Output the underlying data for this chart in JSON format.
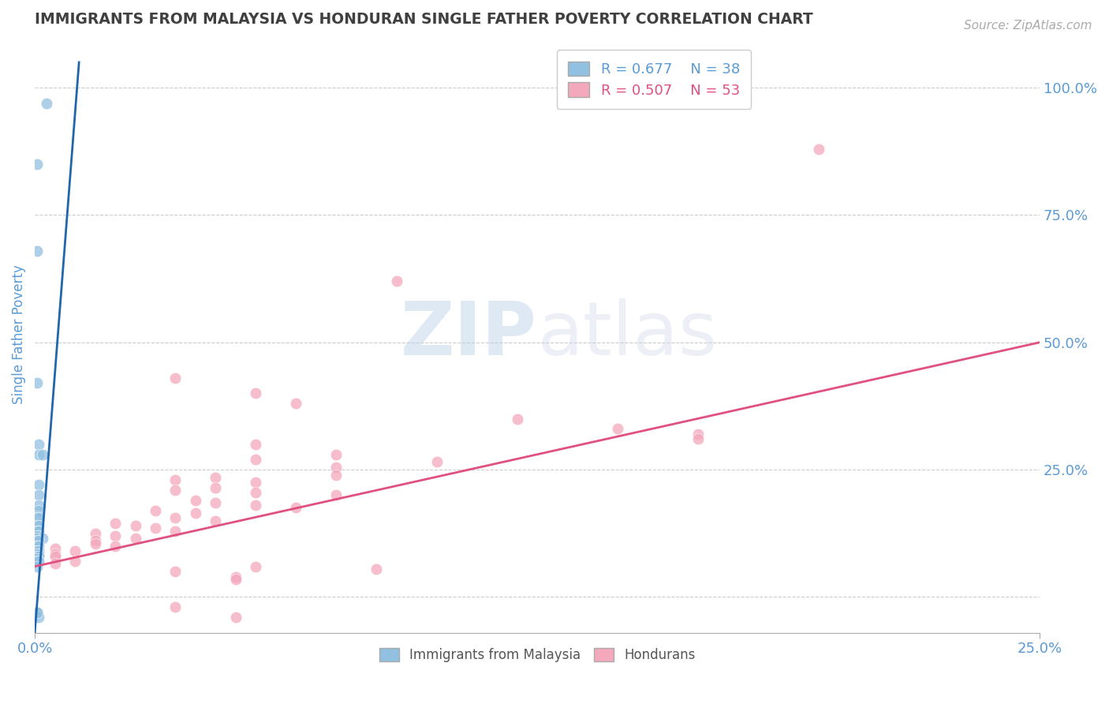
{
  "title": "IMMIGRANTS FROM MALAYSIA VS HONDURAN SINGLE FATHER POVERTY CORRELATION CHART",
  "source": "Source: ZipAtlas.com",
  "ylabel": "Single Father Poverty",
  "legend_blue": {
    "R": 0.677,
    "N": 38,
    "label": "Immigrants from Malaysia"
  },
  "legend_pink": {
    "R": 0.507,
    "N": 53,
    "label": "Hondurans"
  },
  "background_color": "#ffffff",
  "watermark": "ZIPatlas",
  "blue_color": "#92c0e0",
  "pink_color": "#f4a8bc",
  "blue_line_color": "#2166ac",
  "pink_line_color": "#e05080",
  "axis_label_color": "#5b9bd5",
  "title_color": "#404040",
  "blue_scatter": [
    [
      0.0005,
      0.85
    ],
    [
      0.003,
      0.97
    ],
    [
      0.0005,
      0.68
    ],
    [
      0.0005,
      0.42
    ],
    [
      0.001,
      0.3
    ],
    [
      0.001,
      0.28
    ],
    [
      0.002,
      0.28
    ],
    [
      0.001,
      0.22
    ],
    [
      0.001,
      0.2
    ],
    [
      0.001,
      0.18
    ],
    [
      0.001,
      0.17
    ],
    [
      0.0005,
      0.155
    ],
    [
      0.001,
      0.155
    ],
    [
      0.0005,
      0.14
    ],
    [
      0.001,
      0.14
    ],
    [
      0.0005,
      0.13
    ],
    [
      0.001,
      0.13
    ],
    [
      0.001,
      0.12
    ],
    [
      0.0005,
      0.12
    ],
    [
      0.0005,
      0.115
    ],
    [
      0.002,
      0.115
    ],
    [
      0.0005,
      0.11
    ],
    [
      0.001,
      0.11
    ],
    [
      0.0005,
      0.1
    ],
    [
      0.001,
      0.1
    ],
    [
      0.0005,
      0.09
    ],
    [
      0.001,
      0.09
    ],
    [
      0.001,
      0.085
    ],
    [
      0.0005,
      0.085
    ],
    [
      0.0005,
      0.08
    ],
    [
      0.001,
      0.08
    ],
    [
      0.0005,
      0.075
    ],
    [
      0.0005,
      0.07
    ],
    [
      0.001,
      0.07
    ],
    [
      0.0005,
      0.06
    ],
    [
      0.0005,
      -0.03
    ],
    [
      0.001,
      -0.04
    ],
    [
      0.0005,
      -0.03
    ]
  ],
  "pink_scatter": [
    [
      0.195,
      0.88
    ],
    [
      0.09,
      0.62
    ],
    [
      0.035,
      0.43
    ],
    [
      0.055,
      0.4
    ],
    [
      0.065,
      0.38
    ],
    [
      0.12,
      0.35
    ],
    [
      0.145,
      0.33
    ],
    [
      0.165,
      0.32
    ],
    [
      0.165,
      0.31
    ],
    [
      0.055,
      0.3
    ],
    [
      0.075,
      0.28
    ],
    [
      0.055,
      0.27
    ],
    [
      0.1,
      0.265
    ],
    [
      0.075,
      0.255
    ],
    [
      0.075,
      0.24
    ],
    [
      0.045,
      0.235
    ],
    [
      0.035,
      0.23
    ],
    [
      0.055,
      0.225
    ],
    [
      0.045,
      0.215
    ],
    [
      0.035,
      0.21
    ],
    [
      0.055,
      0.205
    ],
    [
      0.075,
      0.2
    ],
    [
      0.04,
      0.19
    ],
    [
      0.045,
      0.185
    ],
    [
      0.055,
      0.18
    ],
    [
      0.065,
      0.175
    ],
    [
      0.03,
      0.17
    ],
    [
      0.04,
      0.165
    ],
    [
      0.035,
      0.155
    ],
    [
      0.045,
      0.15
    ],
    [
      0.02,
      0.145
    ],
    [
      0.025,
      0.14
    ],
    [
      0.03,
      0.135
    ],
    [
      0.035,
      0.13
    ],
    [
      0.015,
      0.125
    ],
    [
      0.02,
      0.12
    ],
    [
      0.025,
      0.115
    ],
    [
      0.015,
      0.11
    ],
    [
      0.015,
      0.105
    ],
    [
      0.02,
      0.1
    ],
    [
      0.005,
      0.095
    ],
    [
      0.01,
      0.09
    ],
    [
      0.005,
      0.085
    ],
    [
      0.005,
      0.08
    ],
    [
      0.01,
      0.07
    ],
    [
      0.005,
      0.065
    ],
    [
      0.055,
      0.06
    ],
    [
      0.085,
      0.055
    ],
    [
      0.035,
      0.05
    ],
    [
      0.05,
      0.04
    ],
    [
      0.05,
      0.035
    ],
    [
      0.035,
      -0.02
    ],
    [
      0.05,
      -0.04
    ]
  ],
  "xlim": [
    0.0,
    0.25
  ],
  "ylim": [
    -0.07,
    1.1
  ],
  "yticks": [
    0.0,
    0.25,
    0.5,
    0.75,
    1.0
  ],
  "ytick_labels": [
    "",
    "25.0%",
    "50.0%",
    "75.0%",
    "100.0%"
  ],
  "xticks": [
    0.0,
    0.25
  ],
  "xtick_labels": [
    "0.0%",
    "25.0%"
  ],
  "blue_line_x": [
    0.0,
    0.011
  ],
  "blue_line_y": [
    -0.07,
    1.05
  ],
  "pink_line_x": [
    0.0,
    0.25
  ],
  "pink_line_y": [
    0.06,
    0.5
  ]
}
